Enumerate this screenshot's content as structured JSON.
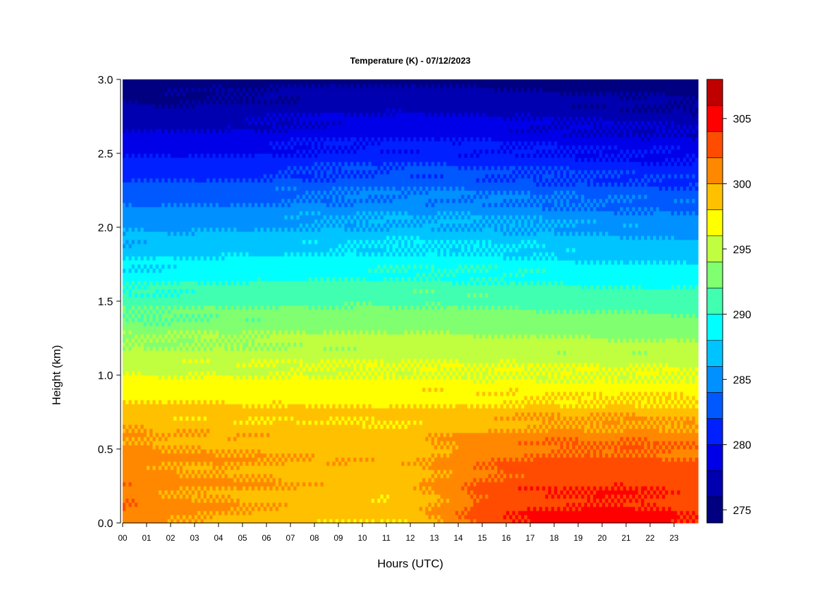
{
  "chart_data": {
    "type": "heatmap",
    "title": "Temperature (K) - 07/12/2023",
    "xlabel": "Hours (UTC)",
    "ylabel": "Height (km)",
    "xlim": [
      0,
      24
    ],
    "ylim": [
      0,
      3
    ],
    "x_ticks": [
      "00",
      "01",
      "02",
      "03",
      "04",
      "05",
      "06",
      "07",
      "08",
      "09",
      "10",
      "11",
      "12",
      "13",
      "14",
      "15",
      "16",
      "17",
      "18",
      "19",
      "20",
      "21",
      "22",
      "23"
    ],
    "y_ticks": [
      "0.0",
      "0.5",
      "1.0",
      "1.5",
      "2.0",
      "2.5",
      "3.0"
    ],
    "colorbar": {
      "levels": [
        274,
        276,
        278,
        280,
        282,
        284,
        286,
        288,
        290,
        292,
        294,
        296,
        298,
        300,
        302,
        304,
        306,
        308
      ],
      "colors": [
        "#000080",
        "#0000B0",
        "#0000E8",
        "#0020FF",
        "#0058FF",
        "#0090FF",
        "#00C4FF",
        "#00FFFF",
        "#40FFB0",
        "#80FF70",
        "#C0FF40",
        "#FFFF00",
        "#FFC000",
        "#FF8800",
        "#FF4C00",
        "#FF0000",
        "#C00000"
      ],
      "top_color": "#800000",
      "tick_values": [
        275,
        280,
        285,
        290,
        295,
        300,
        305
      ],
      "tick_labels": [
        "275",
        "280",
        "285",
        "290",
        "295",
        "300",
        "305"
      ]
    },
    "surface_temperature_profile": {
      "hours": [
        0,
        2,
        4,
        6,
        8,
        10,
        11,
        12,
        13,
        14,
        15,
        16,
        17,
        18,
        19,
        20,
        21,
        22,
        23,
        24
      ],
      "temperature_at_0km": [
        302.0,
        300.5,
        300.0,
        299.5,
        298.8,
        298.5,
        298.3,
        298.8,
        300.0,
        301.5,
        303.0,
        303.8,
        304.3,
        304.6,
        304.8,
        305.0,
        305.0,
        304.8,
        304.2,
        303.8
      ]
    },
    "profile_heights_km": [
      0,
      0.25,
      0.5,
      0.75,
      1.0,
      1.25,
      1.5,
      1.75,
      2.0,
      2.25,
      2.5,
      2.75,
      3.0
    ],
    "profile_temperatures_at_05utc": [
      300.5,
      300.5,
      300.2,
      298.5,
      296.2,
      294.0,
      291.5,
      288.7,
      286.0,
      283.2,
      280.2,
      277.5,
      275.2
    ],
    "note_none": ""
  }
}
